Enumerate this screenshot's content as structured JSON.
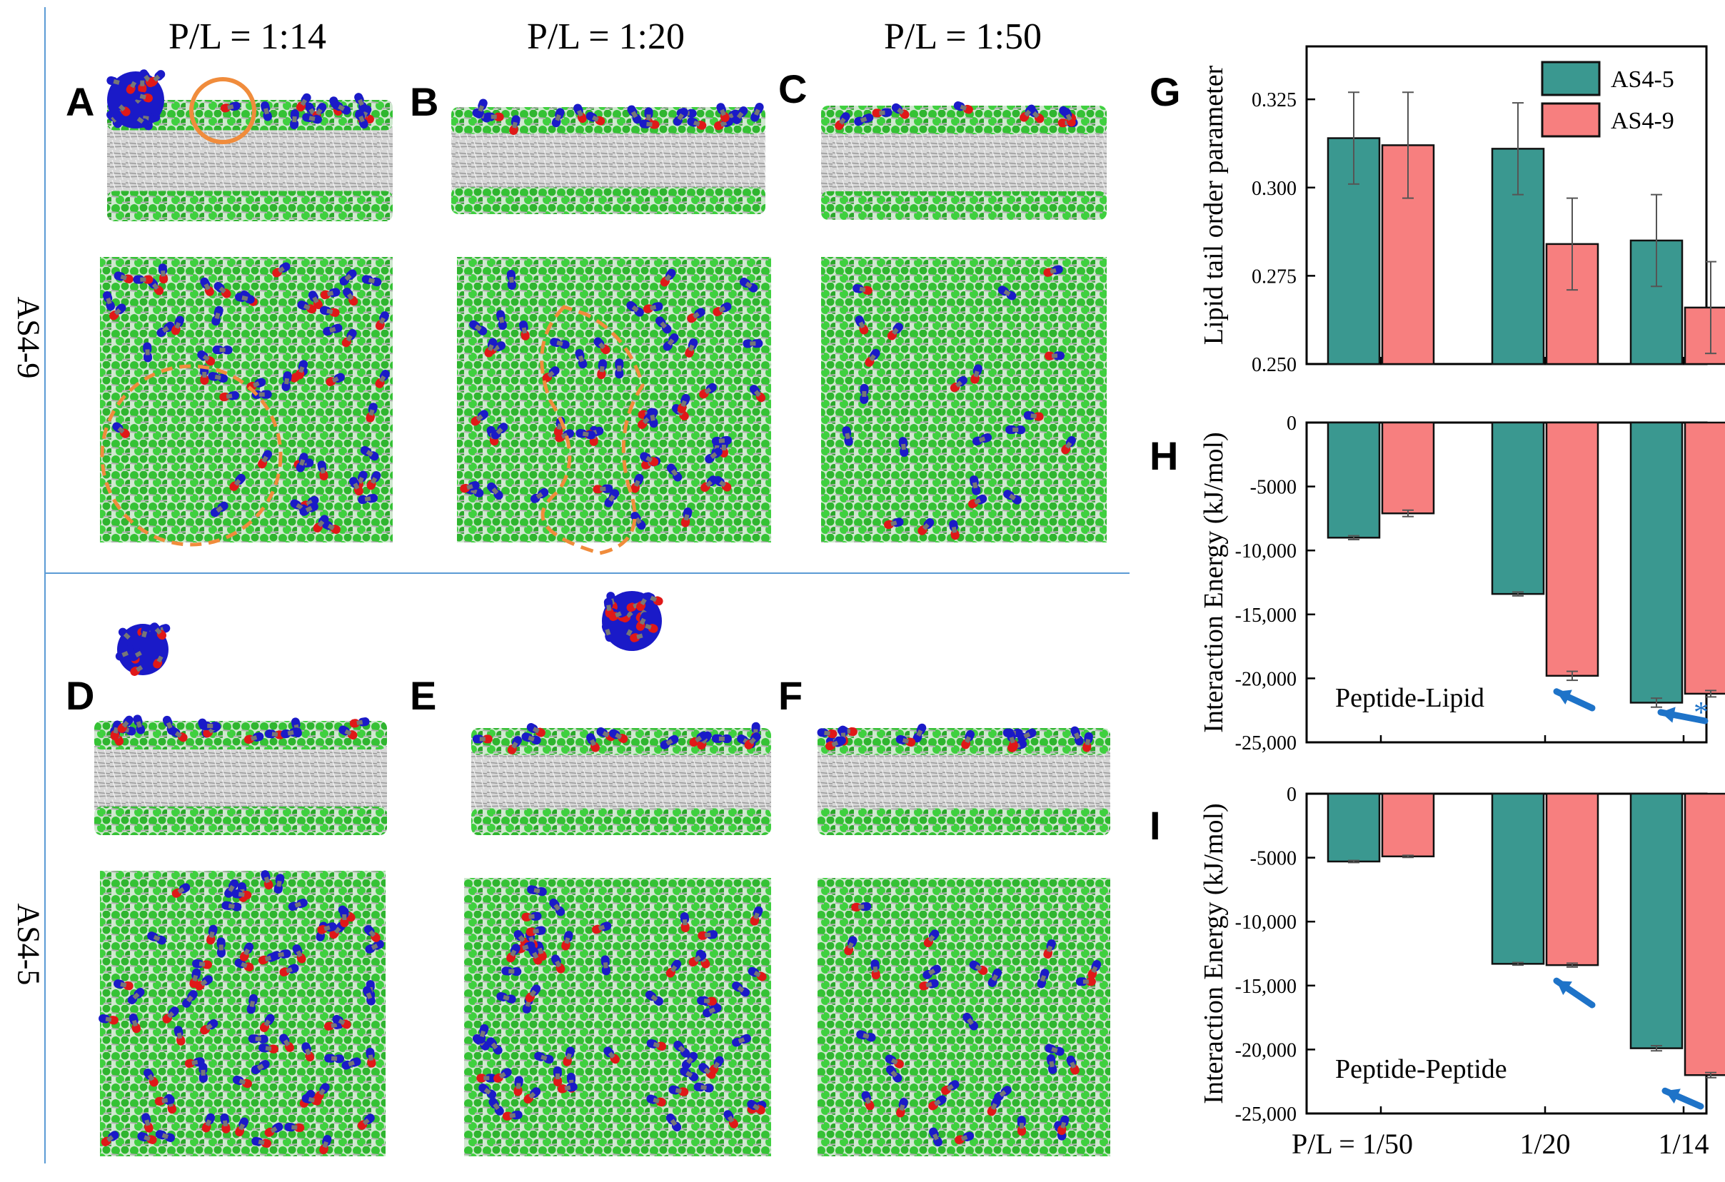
{
  "columns": [
    "P/L = 1:14",
    "P/L = 1:20",
    "P/L = 1:50"
  ],
  "rows": [
    "AS4-9",
    "AS4-5"
  ],
  "panels": {
    "A": "A",
    "B": "B",
    "C": "C",
    "D": "D",
    "E": "E",
    "F": "F",
    "G": "G",
    "H": "H",
    "I": "I"
  },
  "colors": {
    "lipid_green": "#3cc83c",
    "tail_gray": "#c8c8c8",
    "peptide_red": "#e01818",
    "peptide_blue": "#1a1ac8",
    "as45": "#3a9890",
    "as49": "#f77f7f",
    "arrow": "#1e73c8",
    "highlight": "#f08c3c"
  },
  "chart_data": [
    {
      "type": "bar",
      "panel": "G",
      "categories": [
        "P/L = 1/50",
        "1/20",
        "1/14"
      ],
      "series": [
        {
          "name": "AS4-5",
          "values": [
            0.314,
            0.311,
            0.285
          ],
          "errors": [
            0.013,
            0.013,
            0.013
          ]
        },
        {
          "name": "AS4-9",
          "values": [
            0.312,
            0.284,
            0.266
          ],
          "errors": [
            0.015,
            0.013,
            0.013
          ]
        }
      ],
      "ylabel": "Lipid tail order parameter",
      "ylim": [
        0.25,
        0.34
      ],
      "yticks": [
        0.25,
        0.275,
        0.3,
        0.325
      ],
      "yticklabels": [
        "0.250",
        "0.275",
        "0.300",
        "0.325"
      ],
      "legend": [
        "AS4-5",
        "AS4-9"
      ]
    },
    {
      "type": "bar",
      "panel": "H",
      "categories": [
        "P/L = 1/50",
        "1/20",
        "1/14"
      ],
      "series": [
        {
          "name": "AS4-5",
          "values": [
            -9000,
            -13400,
            -21900
          ],
          "errors": [
            150,
            150,
            350
          ]
        },
        {
          "name": "AS4-9",
          "values": [
            -7100,
            -19800,
            -21200
          ],
          "errors": [
            250,
            350,
            250
          ]
        }
      ],
      "ylabel": "Interaction Energy (kJ/mol)",
      "ylim": [
        -25000,
        0
      ],
      "yticks": [
        0,
        -5000,
        -10000,
        -15000,
        -20000,
        -25000
      ],
      "yticklabels": [
        "0",
        "-5000",
        "-10,000",
        "-15,000",
        "-20,000",
        "-25,000"
      ],
      "annotation": "Peptide-Lipid",
      "marker": "*"
    },
    {
      "type": "bar",
      "panel": "I",
      "categories": [
        "P/L = 1/50",
        "1/20",
        "1/14"
      ],
      "series": [
        {
          "name": "AS4-5",
          "values": [
            -5300,
            -13300,
            -19900
          ],
          "errors": [
            80,
            100,
            200
          ]
        },
        {
          "name": "AS4-9",
          "values": [
            -4900,
            -13400,
            -22000
          ],
          "errors": [
            80,
            150,
            200
          ]
        }
      ],
      "ylabel": "Interaction Energy (kJ/mol)",
      "ylim": [
        -25000,
        0
      ],
      "yticks": [
        0,
        -5000,
        -10000,
        -15000,
        -20000,
        -25000
      ],
      "yticklabels": [
        "0",
        "-5000",
        "-10,000",
        "-15,000",
        "-20,000",
        "-25,000"
      ],
      "annotation": "Peptide-Peptide",
      "xlabels": [
        "P/L = 1/50",
        "1/20",
        "1/14"
      ]
    }
  ]
}
